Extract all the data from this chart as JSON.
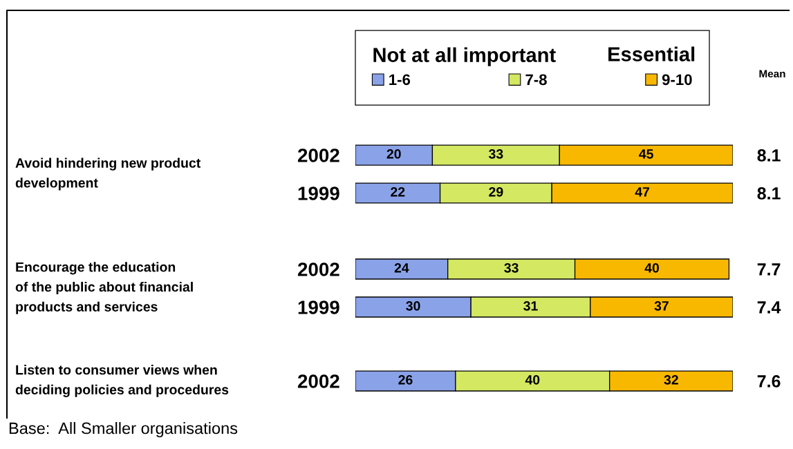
{
  "chart_data": [
    {
      "type": "bar",
      "orientation": "horizontal",
      "stacked": true,
      "ylabel": "Avoid hindering new product\ndevelopment",
      "categories": [
        "2002",
        "1999"
      ],
      "y2_categories": [
        "8.1",
        "8.1"
      ],
      "y2label": "Mean",
      "legend": "top",
      "legend_title": "Not at all important",
      "annotations": [
        "Essential"
      ],
      "xlim": [
        0,
        98
      ],
      "tick_labels": "y",
      "data_labels": true,
      "series": [
        {
          "name": "1-6",
          "color": "#8aa2e8",
          "values": [
            20,
            22
          ]
        },
        {
          "name": "7-8",
          "color": "#d4e862",
          "values": [
            33,
            29
          ]
        },
        {
          "name": "9-10",
          "color": "#f9b800",
          "values": [
            45,
            47
          ]
        }
      ]
    },
    {
      "type": "bar",
      "orientation": "horizontal",
      "stacked": true,
      "ylabel": "Encourage the education\nof the public about financial\nproducts and services",
      "categories": [
        "2002",
        "1999"
      ],
      "y2_categories": [
        "7.7",
        "7.4"
      ],
      "xlim": [
        0,
        98
      ],
      "tick_labels": "y",
      "data_labels": true,
      "series": [
        {
          "color": "#8aa2e8",
          "values": [
            24,
            30
          ]
        },
        {
          "color": "#d4e862",
          "values": [
            33,
            31
          ]
        },
        {
          "color": "#f9b800",
          "values": [
            40,
            37
          ]
        }
      ]
    },
    {
      "type": "bar",
      "orientation": "horizontal",
      "stacked": true,
      "ylabel": "Listen to consumer views when\ndeciding policies and procedures",
      "categories": [
        "2002"
      ],
      "y2_categories": [
        "7.6"
      ],
      "annotations": [
        "Base:  All Smaller organisations"
      ],
      "xlim": [
        0,
        98
      ],
      "tick_labels": "y",
      "data_labels": true,
      "series": [
        {
          "color": "#8aa2e8",
          "values": [
            26
          ]
        },
        {
          "color": "#d4e862",
          "values": [
            40
          ]
        },
        {
          "color": "#f9b800",
          "values": [
            32
          ]
        }
      ]
    }
  ]
}
